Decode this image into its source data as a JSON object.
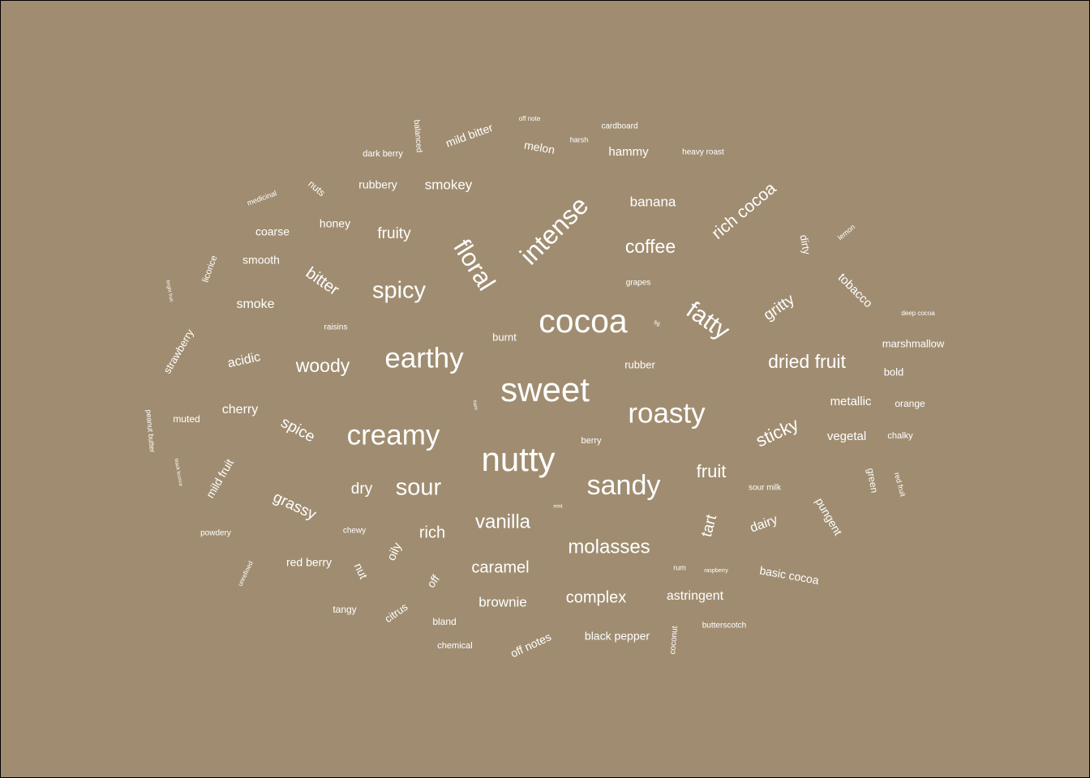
{
  "colors": {
    "background": "#a08d71",
    "text": "#ffffff"
  },
  "chart_data": {
    "type": "wordcloud",
    "title": "",
    "words": [
      {
        "text": "sweet",
        "weight": 100
      },
      {
        "text": "nutty",
        "weight": 98
      },
      {
        "text": "cocoa",
        "weight": 96
      },
      {
        "text": "earthy",
        "weight": 86
      },
      {
        "text": "roasty",
        "weight": 86
      },
      {
        "text": "creamy",
        "weight": 84
      },
      {
        "text": "sandy",
        "weight": 80
      },
      {
        "text": "intense",
        "weight": 78
      },
      {
        "text": "floral",
        "weight": 76
      },
      {
        "text": "fatty",
        "weight": 72
      },
      {
        "text": "spicy",
        "weight": 70
      },
      {
        "text": "sour",
        "weight": 68
      },
      {
        "text": "vanilla",
        "weight": 56
      },
      {
        "text": "molasses",
        "weight": 56
      },
      {
        "text": "woody",
        "weight": 54
      },
      {
        "text": "coffee",
        "weight": 54
      },
      {
        "text": "dried fruit",
        "weight": 54
      },
      {
        "text": "sticky",
        "weight": 52
      },
      {
        "text": "rich cocoa",
        "weight": 50
      },
      {
        "text": "fruit",
        "weight": 50
      },
      {
        "text": "bitter",
        "weight": 46
      },
      {
        "text": "rich",
        "weight": 46
      },
      {
        "text": "caramel",
        "weight": 46
      },
      {
        "text": "complex",
        "weight": 46
      },
      {
        "text": "grassy",
        "weight": 44
      },
      {
        "text": "spice",
        "weight": 44
      },
      {
        "text": "gritty",
        "weight": 44
      },
      {
        "text": "tart",
        "weight": 44
      },
      {
        "text": "fruity",
        "weight": 42
      },
      {
        "text": "smokey",
        "weight": 40
      },
      {
        "text": "banana",
        "weight": 40
      },
      {
        "text": "dry",
        "weight": 40
      },
      {
        "text": "brownie",
        "weight": 38
      },
      {
        "text": "astringent",
        "weight": 38
      },
      {
        "text": "acidic",
        "weight": 36
      },
      {
        "text": "smoke",
        "weight": 36
      },
      {
        "text": "tobacco",
        "weight": 36
      },
      {
        "text": "cherry",
        "weight": 36
      },
      {
        "text": "dairy",
        "weight": 36
      },
      {
        "text": "vegetal",
        "weight": 36
      },
      {
        "text": "metallic",
        "weight": 36
      },
      {
        "text": "mild bitter",
        "weight": 34
      },
      {
        "text": "mild fruit",
        "weight": 34
      },
      {
        "text": "oily",
        "weight": 34
      },
      {
        "text": "hammy",
        "weight": 34
      },
      {
        "text": "melon",
        "weight": 34
      },
      {
        "text": "pungent",
        "weight": 34
      },
      {
        "text": "basic cocoa",
        "weight": 32
      },
      {
        "text": "off notes",
        "weight": 32
      },
      {
        "text": "black pepper",
        "weight": 32
      },
      {
        "text": "honey",
        "weight": 32
      },
      {
        "text": "rubbery",
        "weight": 32
      },
      {
        "text": "strawberry",
        "weight": 30
      },
      {
        "text": "red berry",
        "weight": 30
      },
      {
        "text": "citrus",
        "weight": 30
      },
      {
        "text": "off",
        "weight": 30
      },
      {
        "text": "nut",
        "weight": 30
      },
      {
        "text": "coarse",
        "weight": 30
      },
      {
        "text": "smooth",
        "weight": 30
      },
      {
        "text": "marshmallow",
        "weight": 28
      },
      {
        "text": "dirty",
        "weight": 28
      },
      {
        "text": "nuts",
        "weight": 28
      },
      {
        "text": "muted",
        "weight": 28
      },
      {
        "text": "bold",
        "weight": 28
      },
      {
        "text": "rubber",
        "weight": 28
      },
      {
        "text": "burnt",
        "weight": 28
      },
      {
        "text": "green",
        "weight": 28
      },
      {
        "text": "tangy",
        "weight": 26
      },
      {
        "text": "bland",
        "weight": 26
      },
      {
        "text": "licorice",
        "weight": 26
      },
      {
        "text": "orange",
        "weight": 26
      },
      {
        "text": "chalky",
        "weight": 26
      },
      {
        "text": "dark berry",
        "weight": 24
      },
      {
        "text": "heavy roast",
        "weight": 24
      },
      {
        "text": "balanced",
        "weight": 24
      },
      {
        "text": "chemical",
        "weight": 24
      },
      {
        "text": "butterscotch",
        "weight": 24
      },
      {
        "text": "sour milk",
        "weight": 24
      },
      {
        "text": "cardboard",
        "weight": 24
      },
      {
        "text": "coconut",
        "weight": 24
      },
      {
        "text": "red fruit",
        "weight": 22
      },
      {
        "text": "medicinal",
        "weight": 22
      },
      {
        "text": "powdery",
        "weight": 22
      },
      {
        "text": "raisins",
        "weight": 22
      },
      {
        "text": "grapes",
        "weight": 22
      },
      {
        "text": "chewy",
        "weight": 22
      },
      {
        "text": "lemon",
        "weight": 22
      },
      {
        "text": "unrefined",
        "weight": 20
      },
      {
        "text": "peanut butter",
        "weight": 20
      },
      {
        "text": "berry",
        "weight": 20
      },
      {
        "text": "harsh",
        "weight": 20
      },
      {
        "text": "rum",
        "weight": 20
      },
      {
        "text": "deep cocoa",
        "weight": 18
      },
      {
        "text": "off note",
        "weight": 18
      },
      {
        "text": "raspberry",
        "weight": 16
      },
      {
        "text": "black licorice",
        "weight": 14
      },
      {
        "text": "bright fruit",
        "weight": 14
      },
      {
        "text": "fig",
        "weight": 14
      },
      {
        "text": "mint",
        "weight": 12
      },
      {
        "text": "ham",
        "weight": 10
      }
    ]
  }
}
